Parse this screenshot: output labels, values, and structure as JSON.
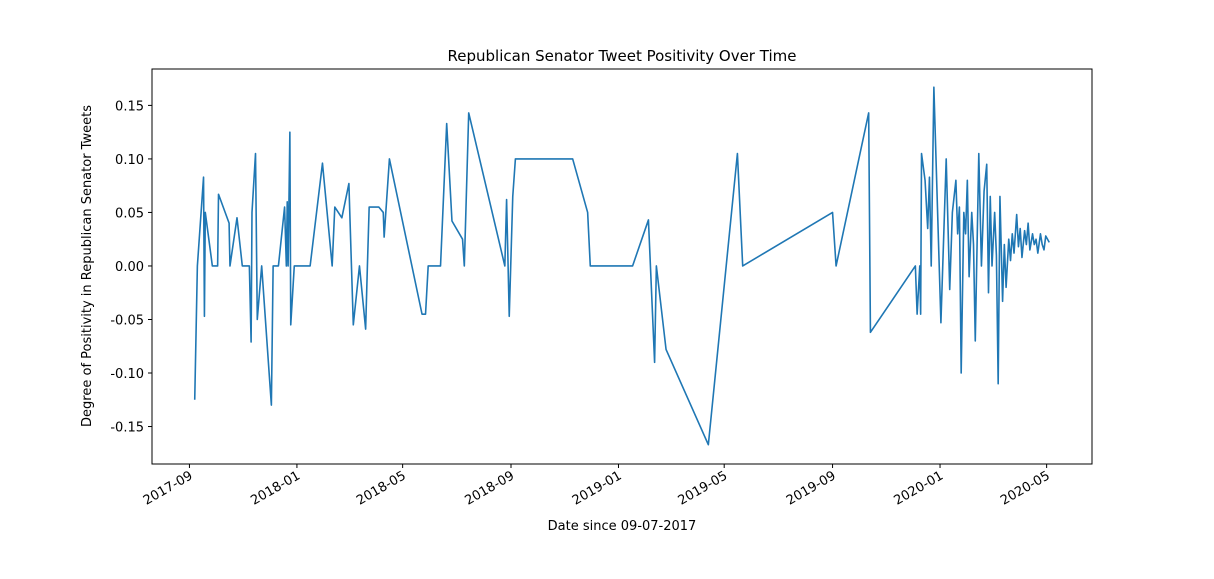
{
  "chart_data": {
    "type": "line",
    "title": "Republican Senator Tweet Positivity Over Time",
    "xlabel": "Date since 09-07-2017",
    "ylabel": "Degree of Positivity in Republican Senator Tweets",
    "series": [
      {
        "color": "#1f77b4",
        "x": [
          0,
          3,
          10,
          11,
          12,
          20,
          26,
          27,
          39,
          40,
          48,
          54,
          62,
          64,
          65,
          69,
          71,
          76,
          87,
          89,
          95,
          102,
          104,
          105,
          106,
          108,
          109,
          113,
          131,
          145,
          156,
          159,
          167,
          175,
          176,
          180,
          187,
          194,
          196,
          198,
          209,
          214,
          215,
          221,
          258,
          262,
          265,
          279,
          286,
          292,
          304,
          306,
          311,
          352,
          354,
          357,
          361,
          364,
          429,
          446,
          449,
          497,
          515,
          522,
          524,
          535,
          583,
          616,
          622,
          724,
          728,
          765,
          767,
          818,
          820,
          823,
          824,
          825,
          829,
          832,
          834,
          836,
          839,
          847,
          853,
          857,
          860,
          864,
          866,
          868,
          870,
          873,
          875,
          877,
          879,
          882,
          884,
          886,
          890,
          893,
          896,
          899,
          901,
          903,
          905,
          908,
          910,
          912,
          914,
          917,
          919,
          921,
          924,
          926,
          928,
          930,
          933,
          935,
          937,
          939,
          942,
          944,
          946,
          948,
          951,
          953,
          955,
          957,
          960,
          962,
          964,
          966,
          970
        ],
        "values": [
          -0.125,
          0.0,
          0.083,
          -0.047,
          0.05,
          0.0,
          0.0,
          0.067,
          0.04,
          0.0,
          0.045,
          0.0,
          0.0,
          -0.071,
          0.05,
          0.105,
          -0.05,
          0.0,
          -0.13,
          0.0,
          0.0,
          0.055,
          0.0,
          0.06,
          0.0,
          0.125,
          -0.055,
          0.0,
          0.0,
          0.096,
          0.0,
          0.055,
          0.045,
          0.077,
          0.05,
          -0.055,
          0.0,
          -0.059,
          0.0,
          0.055,
          0.055,
          0.05,
          0.027,
          0.1,
          -0.045,
          -0.045,
          0.0,
          0.0,
          0.133,
          0.042,
          0.025,
          0.0,
          0.143,
          0.0,
          0.062,
          -0.047,
          0.065,
          0.1,
          0.1,
          0.05,
          0.0,
          0.0,
          0.043,
          -0.09,
          0.0,
          -0.078,
          -0.167,
          0.105,
          0.0,
          0.05,
          0.0,
          0.143,
          -0.062,
          0.0,
          -0.045,
          0.0,
          -0.045,
          0.105,
          0.08,
          0.035,
          0.083,
          0.0,
          0.167,
          -0.053,
          0.1,
          -0.022,
          0.05,
          0.08,
          0.03,
          0.055,
          -0.1,
          0.05,
          0.03,
          0.08,
          -0.01,
          0.05,
          0.02,
          -0.07,
          0.105,
          0.0,
          0.07,
          0.095,
          -0.025,
          0.065,
          0.0,
          0.05,
          0.01,
          -0.11,
          0.065,
          -0.033,
          0.02,
          -0.02,
          0.025,
          0.005,
          0.03,
          0.012,
          0.048,
          0.018,
          0.035,
          0.008,
          0.033,
          0.02,
          0.04,
          0.015,
          0.03,
          0.02,
          0.025,
          0.012,
          0.03,
          0.02,
          0.015,
          0.028,
          0.022
        ]
      }
    ],
    "xlim": [
      -48.5,
      1018.5
    ],
    "xticks": [
      {
        "value": -6,
        "label": "2017-09"
      },
      {
        "value": 116,
        "label": "2018-01"
      },
      {
        "value": 236,
        "label": "2018-05"
      },
      {
        "value": 359,
        "label": "2018-09"
      },
      {
        "value": 481,
        "label": "2019-01"
      },
      {
        "value": 601,
        "label": "2019-05"
      },
      {
        "value": 724,
        "label": "2019-09"
      },
      {
        "value": 846,
        "label": "2020-01"
      },
      {
        "value": 967,
        "label": "2020-05"
      }
    ],
    "ylim": [
      -0.185,
      0.184
    ],
    "yticks": [
      -0.15,
      {
        "value": -0.1,
        "label": "-0.10"
      },
      -0.05,
      {
        "value": 0,
        "label": "0.00"
      },
      {
        "value": 0.05,
        "label": "0.05"
      },
      {
        "value": 0.1,
        "label": "0.10"
      },
      0.15
    ],
    "grid": false
  }
}
